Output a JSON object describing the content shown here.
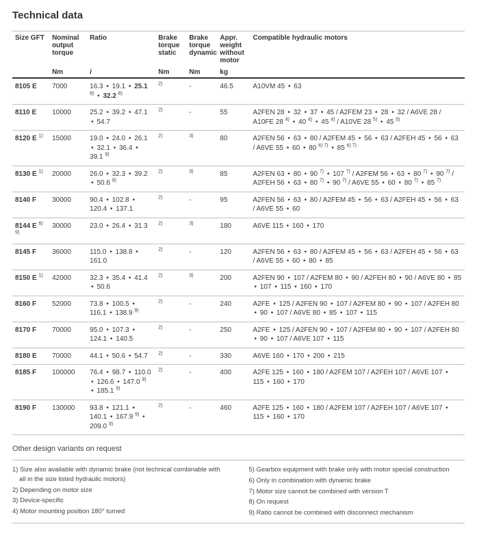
{
  "title": "Technical data",
  "columns": {
    "size": "Size GFT",
    "torque": "Nominal output torque",
    "ratio": "Ratio",
    "bstatic": "Brake torque static",
    "bdynamic": "Brake torque dynamic",
    "weight": "Appr. weight without motor",
    "motors": "Compatible hydraulic motors"
  },
  "units": {
    "size": "",
    "torque": "Nm",
    "ratio": "i",
    "bstatic": "Nm",
    "bdynamic": "Nm",
    "weight": "kg",
    "motors": ""
  },
  "rows": [
    {
      "size": "8105 E",
      "size_sup": "",
      "torque": "7000",
      "ratio": "16.3 <span class='dot'>•</span> 19.1 <span class='dot'>•</span> <b>25.1</b> <sup>8)</sup> <span class='dot'>•</span> <b>32.2</b> <sup>8)</sup>",
      "bstatic": "<sup>2)</sup>",
      "bdynamic": "-",
      "weight": "46.5",
      "motors": "A10VM 45 <span class='dot'>•</span> 63"
    },
    {
      "size": "8110 E",
      "size_sup": "",
      "torque": "10000",
      "ratio": "25.2 <span class='dot'>•</span> 39.2 <span class='dot'>•</span> 47.1 <span class='dot'>•</span> 54.7",
      "bstatic": "<sup>2)</sup>",
      "bdynamic": "-",
      "weight": "55",
      "motors": "A2FEN 28 <span class='dot'>•</span> 32 <span class='dot'>•</span> 37 <span class='dot'>•</span> 45 / A2FEM 23 <span class='dot'>•</span> 28 <span class='dot'>•</span> 32 / A6VE 28 / A10FE 28 <sup>4)</sup> <span class='dot'>•</span> 40 <sup>4)</sup> <span class='dot'>•</span> 45 <sup>4)</sup> / A10VE 28 <sup>5)</sup> <span class='dot'>•</span> 45 <sup>5)</sup>"
    },
    {
      "size": "8120 E",
      "size_sup": "1)",
      "torque": "15000",
      "ratio": "19.0 <span class='dot'>•</span> 24.0 <span class='dot'>•</span> 26.1 <span class='dot'>•</span> 32.1 <span class='dot'>•</span> 36.4 <span class='dot'>•</span> 39.1 <sup>9)</sup>",
      "bstatic": "<sup>2)</sup>",
      "bdynamic": "<sup>3)</sup>",
      "weight": "80",
      "motors": "A2FEN 56 <span class='dot'>•</span> 63 <span class='dot'>•</span> 80 / A2FEM 45 <span class='dot'>•</span> 56 <span class='dot'>•</span> 63 / A2FEH 45 <span class='dot'>•</span> 56 <span class='dot'>•</span> 63 / A6VE 55 <span class='dot'>•</span> 60 <span class='dot'>•</span> 80 <sup>6) 7)</sup> <span class='dot'>•</span> 85 <sup>6) 7)</sup>"
    },
    {
      "size": "8130 E",
      "size_sup": "1)",
      "torque": "20000",
      "ratio": "26.0 <span class='dot'>•</span> 32.3 <span class='dot'>•</span> 39.2 <span class='dot'>•</span> 50.6 <sup>9)</sup>",
      "bstatic": "<sup>2)</sup>",
      "bdynamic": "<sup>3)</sup>",
      "weight": "85",
      "motors": "A2FEN 63 <span class='dot'>•</span> 80 <span class='dot'>•</span> 90 <sup>7)</sup> <span class='dot'>•</span> 107 <sup>7)</sup> / A2FEM 56 <span class='dot'>•</span> 63 <span class='dot'>•</span> 80 <sup>7)</sup> <span class='dot'>•</span> 90 <sup>7)</sup> / A2FEH 56 <span class='dot'>•</span> 63 <span class='dot'>•</span> 80 <sup>7)</sup> <span class='dot'>•</span> 90 <sup>7)</sup> / A6VE 55 <span class='dot'>•</span> 60 <span class='dot'>•</span> 80 <sup>7)</sup> <span class='dot'>•</span> 85 <sup>7)</sup>"
    },
    {
      "size": "8140 F",
      "size_sup": "",
      "torque": "30000",
      "ratio": "90.4 <span class='dot'>•</span> 102.8 <span class='dot'>•</span> 120.4 <span class='dot'>•</span> 137.1",
      "bstatic": "<sup>2)</sup>",
      "bdynamic": "-",
      "weight": "95",
      "motors": "A2FEN 56 <span class='dot'>•</span> 63 <span class='dot'>•</span> 80 / A2FEM 45 <span class='dot'>•</span> 56 <span class='dot'>•</span> 63 / A2FEH 45 <span class='dot'>•</span> 56 <span class='dot'>•</span> 63 / A6VE 55 <span class='dot'>•</span> 60"
    },
    {
      "size": "8144 E",
      "size_sup": "6) 9)",
      "torque": "30000",
      "ratio": "23.0 <span class='dot'>•</span> 26.4 <span class='dot'>•</span> 31.3",
      "bstatic": "<sup>2)</sup>",
      "bdynamic": "<sup>3)</sup>",
      "weight": "180",
      "motors": "A6VE 115 <span class='dot'>•</span> 160 <span class='dot'>•</span> 170"
    },
    {
      "size": "8145 F",
      "size_sup": "",
      "torque": "36000",
      "ratio": "115.0 <span class='dot'>•</span> 138.8 <span class='dot'>•</span> 161.0",
      "bstatic": "<sup>2)</sup>",
      "bdynamic": "-",
      "weight": "120",
      "motors": "A2FEN 56 <span class='dot'>•</span> 63 <span class='dot'>•</span> 80 / A2FEM 45 <span class='dot'>•</span> 56 <span class='dot'>•</span> 63 / A2FEH 45 <span class='dot'>•</span> 56 <span class='dot'>•</span> 63 / A6VE 55 <span class='dot'>•</span> 60 <span class='dot'>•</span> 80 <span class='dot'>•</span> 85"
    },
    {
      "size": "8150 E",
      "size_sup": "1)",
      "torque": "42000",
      "ratio": "32.3 <span class='dot'>•</span> 35.4 <span class='dot'>•</span> 41.4 <span class='dot'>•</span> 50.6",
      "bstatic": "<sup>2)</sup>",
      "bdynamic": "<sup>3)</sup>",
      "weight": "200",
      "motors": "A2FEN 90 <span class='dot'>•</span> 107 / A2FEM 80 <span class='dot'>•</span> 90 / A2FEH 80 <span class='dot'>•</span> 90 / A6VE 80 <span class='dot'>•</span> 85 <span class='dot'>•</span> 107 <span class='dot'>•</span> 115 <span class='dot'>•</span> 160 <span class='dot'>•</span> 170"
    },
    {
      "size": "8160 F",
      "size_sup": "",
      "torque": "52000",
      "ratio": "73.8 <span class='dot'>•</span> 100.5 <span class='dot'>•</span> 116.1 <span class='dot'>•</span> 138.9 <sup>9)</sup>",
      "bstatic": "<sup>2)</sup>",
      "bdynamic": "-",
      "weight": "240",
      "motors": "A2FE <span class='dot'>•</span> 125 / A2FEN 90 <span class='dot'>•</span> 107 / A2FEM 80 <span class='dot'>•</span> 90 <span class='dot'>•</span> 107 / A2FEH 80 <span class='dot'>•</span> 90 <span class='dot'>•</span> 107 / A6VE 80 <span class='dot'>•</span> 85 <span class='dot'>•</span> 107 <span class='dot'>•</span> 115"
    },
    {
      "size": "8170 F",
      "size_sup": "",
      "torque": "70000",
      "ratio": "95.0 <span class='dot'>•</span> 107.3 <span class='dot'>•</span> 124.1 <span class='dot'>•</span> 140.5",
      "bstatic": "<sup>2)</sup>",
      "bdynamic": "-",
      "weight": "250",
      "motors": "A2FE <span class='dot'>•</span> 125 / A2FEN 90 <span class='dot'>•</span> 107 / A2FEM 80 <span class='dot'>•</span> 90 <span class='dot'>•</span> 107 / A2FEH 80 <span class='dot'>•</span> 90 <span class='dot'>•</span> 107 / A6VE 107 <span class='dot'>•</span> 115"
    },
    {
      "size": "8180 E",
      "size_sup": "",
      "torque": "70000",
      "ratio": "44.1 <span class='dot'>•</span> 50.6 <span class='dot'>•</span> 54.7",
      "bstatic": "<sup>2)</sup>",
      "bdynamic": "-",
      "weight": "330",
      "motors": "A6VE 160 <span class='dot'>•</span> 170 <span class='dot'>•</span> 200 <span class='dot'>•</span> 215"
    },
    {
      "size": "8185 F",
      "size_sup": "",
      "torque": "100000",
      "ratio": "76.4 <span class='dot'>•</span> 98.7 <span class='dot'>•</span> 110.0 <span class='dot'>•</span> 126.6 <span class='dot'>•</span> 147.0 <sup>9)</sup> <span class='dot'>•</span> 185.1 <sup>9)</sup>",
      "bstatic": "<sup>2)</sup>",
      "bdynamic": "-",
      "weight": "400",
      "motors": "A2FE 125 <span class='dot'>•</span> 160 <span class='dot'>•</span> 180 / A2FEM 107 / A2FEH 107 / A6VE 107 <span class='dot'>•</span> 115 <span class='dot'>•</span> 160 <span class='dot'>•</span> 170"
    },
    {
      "size": "8190 F",
      "size_sup": "",
      "torque": "130000",
      "ratio": "93.8 <span class='dot'>•</span> 121.1 <span class='dot'>•</span> 140.1 <span class='dot'>•</span> 167.9 <sup>9)</sup> <span class='dot'>•</span> 209.0 <sup>9)</sup>",
      "bstatic": "<sup>2)</sup>",
      "bdynamic": "-",
      "weight": "460",
      "motors": "A2FE 125 <span class='dot'>•</span> 160 <span class='dot'>•</span> 180 / A2FEM 107 / A2FEH 107 / A6VE 107 <span class='dot'>•</span> 115 <span class='dot'>•</span> 160 <span class='dot'>•</span> 170"
    }
  ],
  "subtitle": "Other design variants on request",
  "footnotes_left": [
    "1) Size also available with dynamic brake (not technical combinable with all in the size listed hydraulic motors)",
    "2) Depending on motor size",
    "3) Device-specific",
    "4) Motor mounting position 180° turned"
  ],
  "footnotes_right": [
    "5) Gearbox equipment with brake only with motor special construction",
    "6) Only in combination with dynamic brake",
    "7) Motor size cannot be combined with version T",
    "8) On request",
    "9) Ratio cannot be combined with disconnect mechanism"
  ],
  "col_widths": [
    "54",
    "55",
    "100",
    "45",
    "45",
    "48",
    "313"
  ]
}
